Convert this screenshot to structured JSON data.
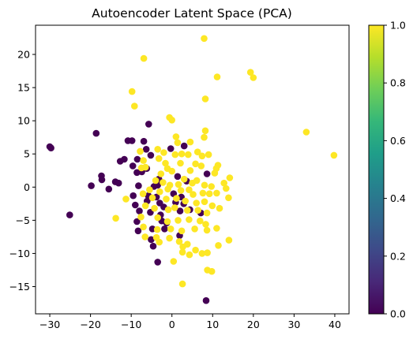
{
  "chart_data": {
    "type": "scatter",
    "title": "Autoencoder Latent Space (PCA)",
    "xlabel": "",
    "ylabel": "",
    "xlim": [
      -33.5,
      43.5
    ],
    "ylim": [
      -19.1,
      24.4
    ],
    "xticks": [
      -30,
      -20,
      -10,
      0,
      10,
      20,
      30,
      40
    ],
    "yticks": [
      -15,
      -10,
      -5,
      0,
      5,
      10,
      15,
      20
    ],
    "grid": false,
    "colorbar": {
      "colormap": "viridis",
      "range": [
        0.0,
        1.0
      ],
      "ticks": [
        "0.0",
        "0.2",
        "0.4",
        "0.6",
        "0.8",
        "1.0"
      ],
      "stops": [
        "#440154",
        "#482878",
        "#3e4a89",
        "#31688e",
        "#26828e",
        "#1f9e89",
        "#35b779",
        "#6ece58",
        "#b5de2b",
        "#fde725"
      ]
    },
    "series": [
      {
        "label_value": 0,
        "color": "#440154",
        "points": [
          [
            -30,
            6.1
          ],
          [
            -29.7,
            5.9
          ],
          [
            -25.1,
            -4.2
          ],
          [
            -18.6,
            8.1
          ],
          [
            -19.8,
            0.2
          ],
          [
            -17.3,
            1.7
          ],
          [
            -17.2,
            1.1
          ],
          [
            -15.5,
            -0.3
          ],
          [
            -13.9,
            0.8
          ],
          [
            -13.1,
            0.6
          ],
          [
            -12.7,
            3.9
          ],
          [
            -11.7,
            4.2
          ],
          [
            -10.8,
            7.0
          ],
          [
            -9.8,
            7.0
          ],
          [
            -9.6,
            3.2
          ],
          [
            -8.6,
            2.2
          ],
          [
            -8.5,
            4.2
          ],
          [
            -8.2,
            0.2
          ],
          [
            -9.5,
            -1.3
          ],
          [
            -9.0,
            -2.7
          ],
          [
            -8.0,
            -3.6
          ],
          [
            -8.6,
            -5.2
          ],
          [
            -8.3,
            -6.6
          ],
          [
            -7.4,
            2.3
          ],
          [
            -6.9,
            6.9
          ],
          [
            -6.3,
            5.7
          ],
          [
            -6.2,
            2.8
          ],
          [
            -5.7,
            9.5
          ],
          [
            -5.2,
            4.8
          ],
          [
            -5.8,
            -1.3
          ],
          [
            -6.1,
            -2.1
          ],
          [
            -5.3,
            -3.8
          ],
          [
            -5.1,
            -7.9
          ],
          [
            -4.8,
            -6.3
          ],
          [
            -4.4,
            0.1
          ],
          [
            -3.8,
            -1.5
          ],
          [
            -3.5,
            0.3
          ],
          [
            -3.2,
            1.2
          ],
          [
            -3.0,
            -2.4
          ],
          [
            -2.8,
            -4.2
          ],
          [
            -2.5,
            -5.1
          ],
          [
            -2.0,
            -3.0
          ],
          [
            -1.8,
            -6.3
          ],
          [
            -1.3,
            -5.4
          ],
          [
            -0.3,
            5.8
          ],
          [
            0.4,
            -1.0
          ],
          [
            0.9,
            -2.3
          ],
          [
            1.4,
            1.6
          ],
          [
            2.0,
            -3.6
          ],
          [
            2.3,
            -1.5
          ],
          [
            2.9,
            -2.5
          ],
          [
            3.0,
            6.2
          ],
          [
            3.6,
            0.9
          ],
          [
            4.4,
            -3.4
          ],
          [
            7.1,
            -3.9
          ],
          [
            8.6,
            2.0
          ],
          [
            -3.5,
            -11.3
          ],
          [
            8.4,
            -17.1
          ],
          [
            -4.6,
            -8.9
          ],
          [
            1.9,
            -7.3
          ]
        ]
      },
      {
        "label_value": 1,
        "color": "#fde725",
        "points": [
          [
            7.9,
            22.4
          ],
          [
            -6.9,
            19.4
          ],
          [
            11.1,
            16.6
          ],
          [
            19.3,
            17.3
          ],
          [
            20.0,
            16.5
          ],
          [
            -9.8,
            14.4
          ],
          [
            8.2,
            13.3
          ],
          [
            -9.2,
            12.2
          ],
          [
            -0.6,
            10.5
          ],
          [
            0.0,
            10.1
          ],
          [
            33.0,
            8.3
          ],
          [
            39.8,
            4.8
          ],
          [
            8.2,
            8.5
          ],
          [
            7.9,
            7.5
          ],
          [
            1.0,
            7.6
          ],
          [
            1.4,
            6.7
          ],
          [
            4.5,
            6.8
          ],
          [
            -3.5,
            5.7
          ],
          [
            -3.2,
            4.3
          ],
          [
            -7.8,
            5.4
          ],
          [
            -7.0,
            4.0
          ],
          [
            -7.5,
            2.9
          ],
          [
            -6.5,
            3.0
          ],
          [
            -2.0,
            5.2
          ],
          [
            -1.6,
            3.6
          ],
          [
            0.8,
            4.9
          ],
          [
            2.4,
            5.0
          ],
          [
            4.0,
            4.9
          ],
          [
            6.3,
            5.3
          ],
          [
            7.4,
            4.7
          ],
          [
            9.0,
            4.9
          ],
          [
            11.3,
            3.3
          ],
          [
            10.9,
            2.8
          ],
          [
            10.5,
            2.1
          ],
          [
            4.5,
            2.5
          ],
          [
            5.8,
            3.5
          ],
          [
            7.2,
            3.2
          ],
          [
            2.1,
            3.6
          ],
          [
            0.0,
            2.4
          ],
          [
            -2.7,
            2.0
          ],
          [
            -1.1,
            2.8
          ],
          [
            -4.0,
            1.0
          ],
          [
            -2.2,
            0.7
          ],
          [
            -0.5,
            0.3
          ],
          [
            1.6,
            0.4
          ],
          [
            3.0,
            1.2
          ],
          [
            5.0,
            0.6
          ],
          [
            6.1,
            1.0
          ],
          [
            8.0,
            0.3
          ],
          [
            9.7,
            0.1
          ],
          [
            12.8,
            0.6
          ],
          [
            14.2,
            1.4
          ],
          [
            -5.5,
            -0.4
          ],
          [
            -3.0,
            -0.7
          ],
          [
            -1.0,
            -0.3
          ],
          [
            2.2,
            -0.5
          ],
          [
            4.2,
            -0.4
          ],
          [
            5.2,
            -1.1
          ],
          [
            7.6,
            -0.9
          ],
          [
            9.2,
            -1.0
          ],
          [
            11.0,
            -0.9
          ],
          [
            13.3,
            -0.2
          ],
          [
            13.9,
            -1.6
          ],
          [
            -11.3,
            -1.8
          ],
          [
            -7.1,
            -1.0
          ],
          [
            -4.8,
            -1.6
          ],
          [
            -1.4,
            -1.8
          ],
          [
            1.1,
            -1.7
          ],
          [
            3.3,
            -2.1
          ],
          [
            6.0,
            -2.4
          ],
          [
            8.0,
            -2.2
          ],
          [
            9.9,
            -2.8
          ],
          [
            -6.5,
            -2.8
          ],
          [
            -4.3,
            -3.2
          ],
          [
            -0.9,
            -3.4
          ],
          [
            0.7,
            -3.1
          ],
          [
            3.8,
            -3.5
          ],
          [
            6.4,
            -3.5
          ],
          [
            8.6,
            -3.9
          ],
          [
            11.7,
            -3.2
          ],
          [
            -7.6,
            -4.5
          ],
          [
            -3.5,
            -4.6
          ],
          [
            -1.1,
            -5.2
          ],
          [
            1.5,
            -5.0
          ],
          [
            4.2,
            -4.9
          ],
          [
            6.9,
            -5.1
          ],
          [
            8.3,
            -5.6
          ],
          [
            -13.8,
            -4.7
          ],
          [
            -7.0,
            -6.0
          ],
          [
            -3.6,
            -6.4
          ],
          [
            -0.3,
            -6.3
          ],
          [
            2.4,
            -6.6
          ],
          [
            5.6,
            -6.3
          ],
          [
            8.6,
            -6.5
          ],
          [
            11.0,
            -6.2
          ],
          [
            -6.6,
            -7.5
          ],
          [
            -3.8,
            -7.6
          ],
          [
            -0.6,
            -7.7
          ],
          [
            1.8,
            -8.2
          ],
          [
            3.8,
            -8.6
          ],
          [
            14.0,
            -8.0
          ],
          [
            -3.1,
            -8.3
          ],
          [
            2.7,
            -9.0
          ],
          [
            5.8,
            -9.5
          ],
          [
            11.4,
            -8.8
          ],
          [
            2.6,
            -9.8
          ],
          [
            4.3,
            -10.2
          ],
          [
            7.4,
            -10.0
          ],
          [
            8.7,
            -9.9
          ],
          [
            0.4,
            -11.2
          ],
          [
            8.7,
            -12.5
          ],
          [
            9.8,
            -12.7
          ],
          [
            2.6,
            -14.6
          ]
        ]
      }
    ]
  }
}
